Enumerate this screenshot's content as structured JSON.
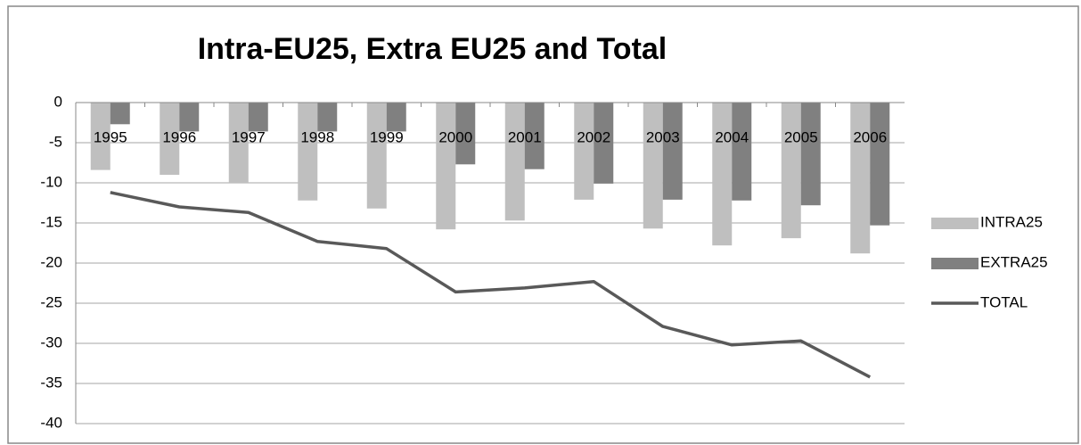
{
  "chart_data": {
    "type": "bar_line",
    "title": "Intra-EU25, Extra EU25 and Total",
    "categories": [
      "1995",
      "1996",
      "1997",
      "1998",
      "1999",
      "2000",
      "2001",
      "2002",
      "2003",
      "2004",
      "2005",
      "2006"
    ],
    "series": [
      {
        "name": "INTRA25",
        "type": "bar",
        "color": "#bfbfbf",
        "values": [
          -8.4,
          -9.0,
          -10.0,
          -12.2,
          -13.2,
          -15.8,
          -14.7,
          -12.1,
          -15.7,
          -17.8,
          -16.9,
          -18.8
        ]
      },
      {
        "name": "EXTRA25",
        "type": "bar",
        "color": "#808080",
        "values": [
          -2.7,
          -3.6,
          -3.6,
          -3.6,
          -3.6,
          -7.7,
          -8.3,
          -10.1,
          -12.1,
          -12.2,
          -12.8,
          -15.3
        ]
      },
      {
        "name": "TOTAL",
        "type": "line",
        "color": "#595959",
        "values": [
          -11.2,
          -13.0,
          -13.7,
          -17.3,
          -18.2,
          -23.6,
          -23.1,
          -22.3,
          -27.9,
          -30.2,
          -29.7,
          -34.2
        ]
      }
    ],
    "ylim": [
      -40,
      0
    ],
    "yticks": [
      0,
      -5,
      -10,
      -15,
      -20,
      -25,
      -30,
      -35,
      -40
    ],
    "grid": true,
    "legend": "right"
  }
}
